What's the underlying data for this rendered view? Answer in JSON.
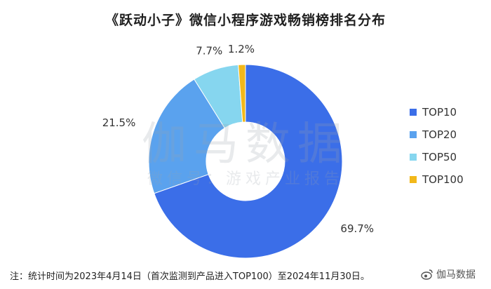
{
  "chart_data": {
    "type": "pie",
    "title": "《跃动小子》微信小程序游戏畅销榜排名分布",
    "categories": [
      "TOP10",
      "TOP20",
      "TOP50",
      "TOP100"
    ],
    "values": [
      69.7,
      21.5,
      7.7,
      1.2
    ],
    "value_labels": [
      "69.7%",
      "21.5%",
      "7.7%",
      "1.2%"
    ],
    "colors": [
      "#3b6ee8",
      "#5aa2ee",
      "#86d6ef",
      "#f2b81a"
    ],
    "donut": true,
    "legend_placement": "right"
  },
  "watermark": {
    "main": "伽马数据",
    "sub": "微信号：游戏产业报告"
  },
  "footer": {
    "note": "注：统计时间为2023年4月14日（首次监测到产品进入TOP100）至2024年11月30日。"
  },
  "brand": {
    "label": "伽马数据"
  }
}
